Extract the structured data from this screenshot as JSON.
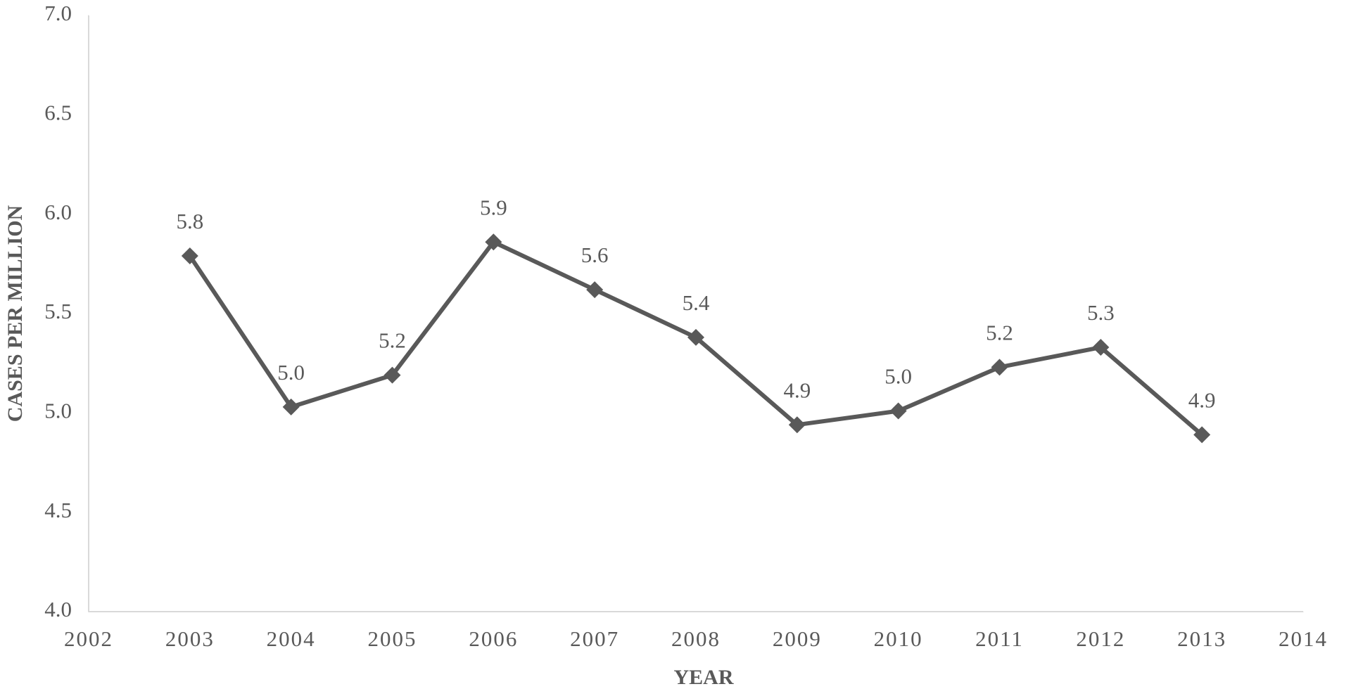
{
  "chart_data": {
    "type": "line",
    "x_label": "YEAR",
    "y_label": "CASES PER MILLION",
    "x": [
      2003,
      2004,
      2005,
      2006,
      2007,
      2008,
      2009,
      2010,
      2011,
      2012,
      2013
    ],
    "series": [
      {
        "name": "Cases per million",
        "color": "#595959",
        "values": [
          5.79,
          5.03,
          5.19,
          5.86,
          5.62,
          5.38,
          4.94,
          5.01,
          5.23,
          5.33,
          4.89
        ],
        "value_labels": [
          "5.8",
          "5.0",
          "5.2",
          "5.9",
          "5.6",
          "5.4",
          "4.9",
          "5.0",
          "5.2",
          "5.3",
          "4.9"
        ]
      }
    ],
    "xlim": [
      2002,
      2014
    ],
    "xticks": [
      2002,
      2003,
      2004,
      2005,
      2006,
      2007,
      2008,
      2009,
      2010,
      2011,
      2012,
      2013,
      2014
    ],
    "ylim": [
      4,
      7
    ],
    "yticks": [
      {
        "value": 4,
        "label": "4.0"
      },
      4.5,
      {
        "value": 5,
        "label": "5.0"
      },
      5.5,
      {
        "value": 6,
        "label": "6.0"
      },
      6.5,
      {
        "value": 7,
        "label": "7.0"
      }
    ],
    "grid": false
  }
}
